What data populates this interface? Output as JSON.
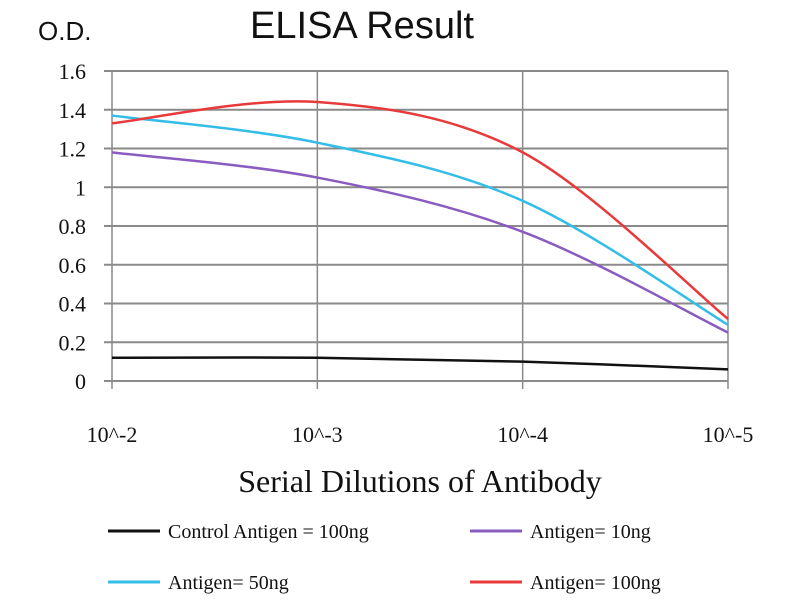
{
  "chart_data": {
    "type": "line",
    "title": "ELISA Result",
    "ylabel": "O.D.",
    "xlabel": "Serial Dilutions of Antibody",
    "categories": [
      "10^-2",
      "10^-3",
      "10^-4",
      "10^-5"
    ],
    "ylim": [
      0,
      1.6
    ],
    "yticks": [
      "0",
      "0.2",
      "0.4",
      "0.6",
      "0.8",
      "1",
      "1.2",
      "1.4",
      "1.6"
    ],
    "grid": true,
    "legend_placement": "bottom",
    "series": [
      {
        "name": "Control Antigen = 100ng",
        "color": "#111111",
        "values": [
          0.12,
          0.12,
          0.1,
          0.06
        ]
      },
      {
        "name": "Antigen= 10ng",
        "color": "#8a5cc0",
        "values": [
          1.18,
          1.05,
          0.77,
          0.25
        ]
      },
      {
        "name": "Antigen= 50ng",
        "color": "#33bde8",
        "values": [
          1.37,
          1.23,
          0.93,
          0.29
        ]
      },
      {
        "name": "Antigen= 100ng",
        "color": "#e83a3a",
        "values": [
          1.33,
          1.44,
          1.18,
          0.32
        ]
      }
    ]
  }
}
